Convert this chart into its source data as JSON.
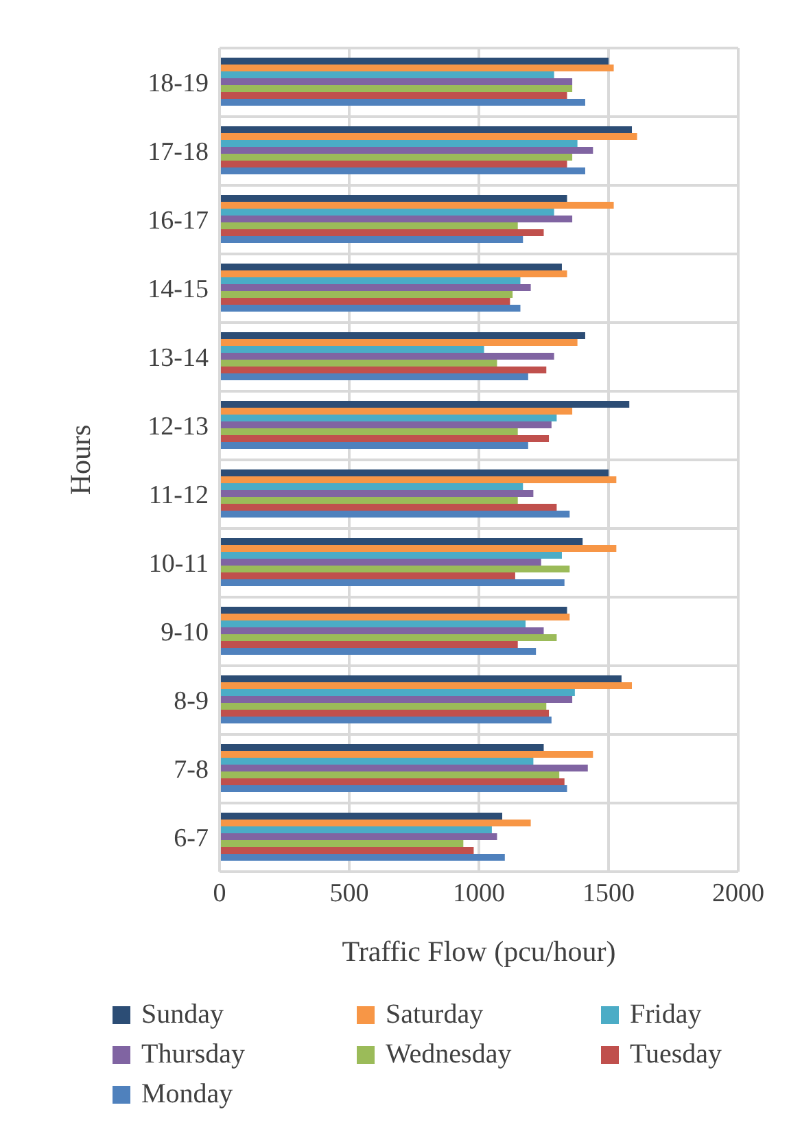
{
  "chart_data": {
    "type": "bar",
    "orientation": "horizontal",
    "ylabel": "Hours",
    "xlabel": "Traffic Flow (pcu/hour)",
    "categories": [
      "18-19",
      "17-18",
      "16-17",
      "14-15",
      "13-14",
      "12-13",
      "11-12",
      "10-11",
      "9-10",
      "8-9",
      "7-8",
      "6-7"
    ],
    "series": [
      {
        "name": "Sunday",
        "color": "#2c4d75",
        "values": [
          1500,
          1590,
          1340,
          1320,
          1410,
          1580,
          1500,
          1400,
          1340,
          1550,
          1250,
          1090
        ]
      },
      {
        "name": "Saturday",
        "color": "#f79646",
        "values": [
          1520,
          1610,
          1520,
          1340,
          1380,
          1360,
          1530,
          1530,
          1350,
          1590,
          1440,
          1200
        ]
      },
      {
        "name": "Friday",
        "color": "#4bacc6",
        "values": [
          1290,
          1380,
          1290,
          1160,
          1020,
          1300,
          1170,
          1320,
          1180,
          1370,
          1210,
          1050
        ]
      },
      {
        "name": "Thursday",
        "color": "#8064a2",
        "values": [
          1360,
          1440,
          1360,
          1200,
          1290,
          1280,
          1210,
          1240,
          1250,
          1360,
          1420,
          1070
        ]
      },
      {
        "name": "Wednesday",
        "color": "#9bbb59",
        "values": [
          1360,
          1360,
          1150,
          1130,
          1070,
          1150,
          1150,
          1350,
          1300,
          1260,
          1310,
          940
        ]
      },
      {
        "name": "Tuesday",
        "color": "#c0504d",
        "values": [
          1340,
          1340,
          1250,
          1120,
          1260,
          1270,
          1300,
          1140,
          1150,
          1270,
          1330,
          980
        ]
      },
      {
        "name": "Monday",
        "color": "#4f81bd",
        "values": [
          1410,
          1410,
          1170,
          1160,
          1190,
          1190,
          1350,
          1330,
          1220,
          1280,
          1340,
          1100
        ]
      }
    ],
    "xlim": [
      0,
      2000
    ],
    "xticks": [
      0,
      500,
      1000,
      1500,
      2000
    ],
    "grid": true,
    "legend": "bottom"
  }
}
